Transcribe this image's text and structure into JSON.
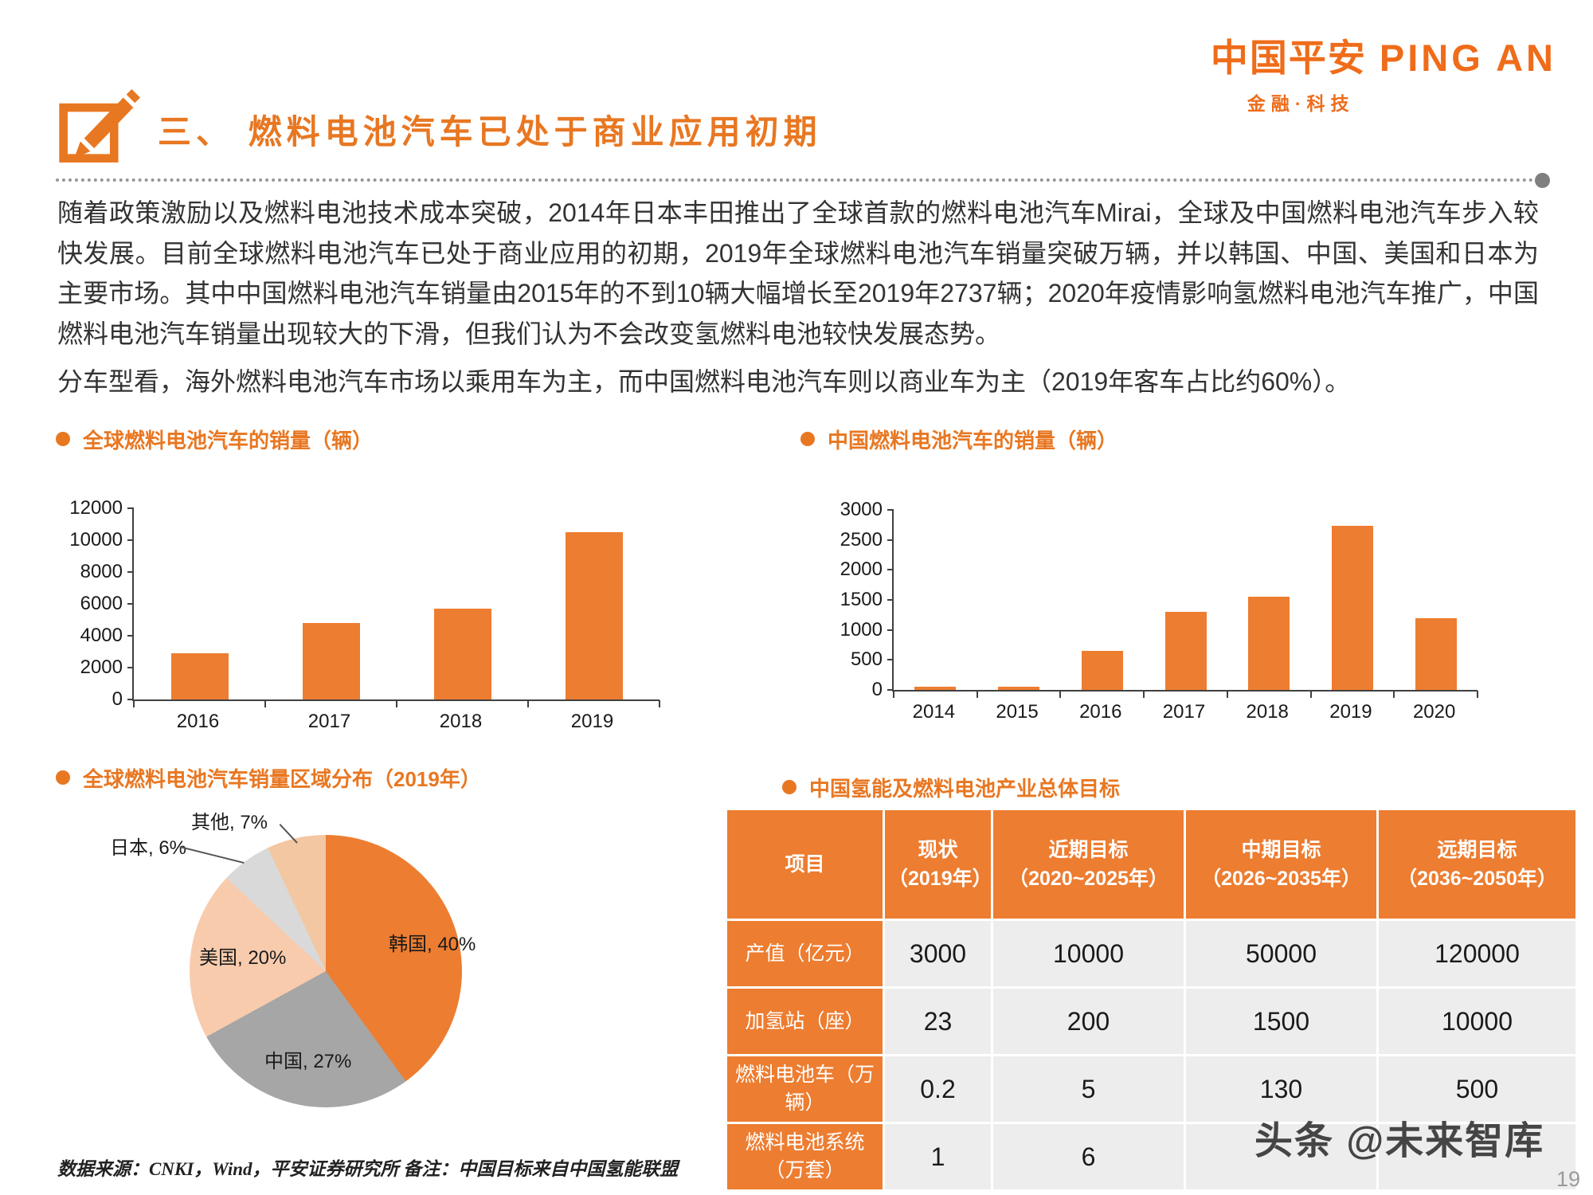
{
  "brand": {
    "logo_cn": "中国平安",
    "logo_en": "PING AN",
    "tagline": "金融·科技",
    "color": "#EF6C1A"
  },
  "header": {
    "section_title": "三、 燃料电池汽车已处于商业应用初期"
  },
  "paragraphs": {
    "p1": "随着政策激励以及燃料电池技术成本突破，2014年日本丰田推出了全球首款的燃料电池汽车Mirai，全球及中国燃料电池汽车步入较快发展。目前全球燃料电池汽车已处于商业应用的初期，2019年全球燃料电池汽车销量突破万辆，并以韩国、中国、美国和日本为主要市场。其中中国燃料电池汽车销量由2015年的不到10辆大幅增长至2019年2737辆；2020年疫情影响氢燃料电池汽车推广，中国燃料电池汽车销量出现较大的下滑，但我们认为不会改变氢燃料电池较快发展态势。",
    "p2": "分车型看，海外燃料电池汽车市场以乘用车为主，而中国燃料电池汽车则以商业车为主（2019年客车占比约60%）。"
  },
  "chart_data": [
    {
      "type": "bar",
      "title": "全球燃料电池汽车的销量（辆）",
      "categories": [
        "2016",
        "2017",
        "2018",
        "2019"
      ],
      "values": [
        2900,
        4800,
        5700,
        10500
      ],
      "xlabel": "",
      "ylabel": "",
      "ylim": [
        0,
        12000
      ],
      "ytick_step": 2000,
      "bar_color": "#ED7D31",
      "grid": false,
      "legend": "none"
    },
    {
      "type": "bar",
      "title": "中国燃料电池汽车的销量（辆）",
      "categories": [
        "2014",
        "2015",
        "2016",
        "2017",
        "2018",
        "2019",
        "2020"
      ],
      "values": [
        50,
        50,
        650,
        1300,
        1550,
        2737,
        1200
      ],
      "xlabel": "",
      "ylabel": "",
      "ylim": [
        0,
        3000
      ],
      "ytick_step": 500,
      "bar_color": "#ED7D31",
      "grid": false,
      "legend": "none"
    },
    {
      "type": "pie",
      "title": "全球燃料电池汽车销量区域分布（2019年）",
      "slices": [
        {
          "label": "韩国, 40%",
          "value": 40,
          "color": "#ED7D31"
        },
        {
          "label": "中国, 27%",
          "value": 27,
          "color": "#A6A6A6"
        },
        {
          "label": "美国, 20%",
          "value": 20,
          "color": "#F8CBAD"
        },
        {
          "label": "日本, 6%",
          "value": 6,
          "color": "#D9D9D9"
        },
        {
          "label": "其他, 7%",
          "value": 7,
          "color": "#F3C7A2"
        }
      ],
      "legend": "none"
    }
  ],
  "table": {
    "title": "中国氢能及燃料电池产业总体目标",
    "headers": [
      "项目",
      "现状\n（2019年）",
      "近期目标\n（2020~2025年）",
      "中期目标\n（2026~2035年）",
      "远期目标\n（2036~2050年）"
    ],
    "rows": [
      {
        "label": "产值（亿元）",
        "values": [
          "3000",
          "10000",
          "50000",
          "120000"
        ]
      },
      {
        "label": "加氢站（座）",
        "values": [
          "23",
          "200",
          "1500",
          "10000"
        ]
      },
      {
        "label": "燃料电池车（万辆）",
        "values": [
          "0.2",
          "5",
          "130",
          "500"
        ]
      },
      {
        "label": "燃料电池系统（万套）",
        "values": [
          "1",
          "6",
          "",
          ""
        ]
      }
    ]
  },
  "footer": {
    "source_note": "数据来源：CNKI，Wind，平安证券研究所  备注：中国目标来自中国氢能联盟",
    "watermark": "头条 @未来智库",
    "page_number": "19"
  }
}
